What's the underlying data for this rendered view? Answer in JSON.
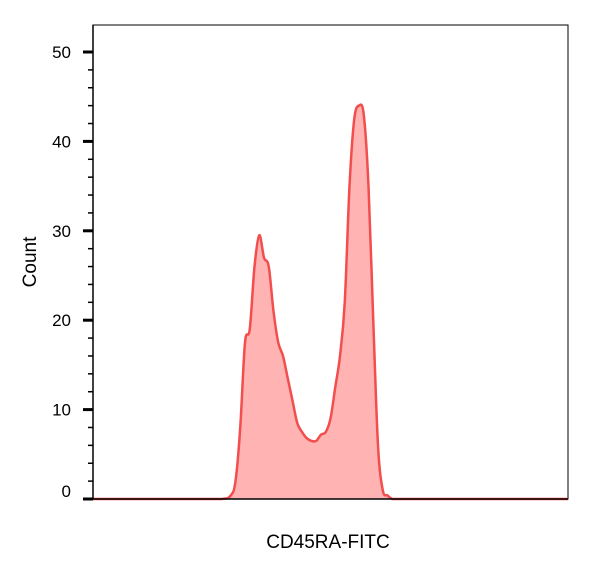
{
  "chart_data": {
    "type": "area",
    "title": "",
    "xlabel": "CD45RA-FITC",
    "ylabel": "Count",
    "ylim": [
      0,
      50
    ],
    "yticks": [
      0,
      10,
      20,
      30,
      40,
      50
    ],
    "x_tick_labels": false,
    "grid": false,
    "series": [
      {
        "x": [
          0,
          10,
          20,
          27,
          29,
          30,
          31,
          32,
          33,
          34,
          35,
          36,
          37,
          38,
          39,
          40,
          41,
          42,
          43,
          44,
          45,
          46,
          47,
          48,
          49,
          50,
          51,
          52,
          53,
          54,
          55,
          56,
          57,
          58,
          59,
          60,
          61,
          62,
          63,
          64,
          65,
          66,
          67,
          68,
          69,
          70,
          71,
          72,
          80,
          90,
          100
        ],
        "values": [
          0,
          0,
          0,
          0,
          0.4,
          2,
          8,
          17.5,
          19,
          26,
          29.5,
          27,
          26,
          21,
          17.5,
          16,
          13.5,
          11,
          8.5,
          7.5,
          6.8,
          6.5,
          6.5,
          7.2,
          7.5,
          9,
          12.5,
          16,
          22,
          35,
          42.5,
          44,
          43,
          35,
          20,
          6,
          1,
          0.4,
          0,
          0,
          0,
          0,
          0,
          0,
          0,
          0,
          0,
          0,
          0,
          0,
          0
        ]
      }
    ],
    "colors": {
      "line": "#f24e4e",
      "fill": "#ffb3b3",
      "axis": "#000000"
    }
  }
}
